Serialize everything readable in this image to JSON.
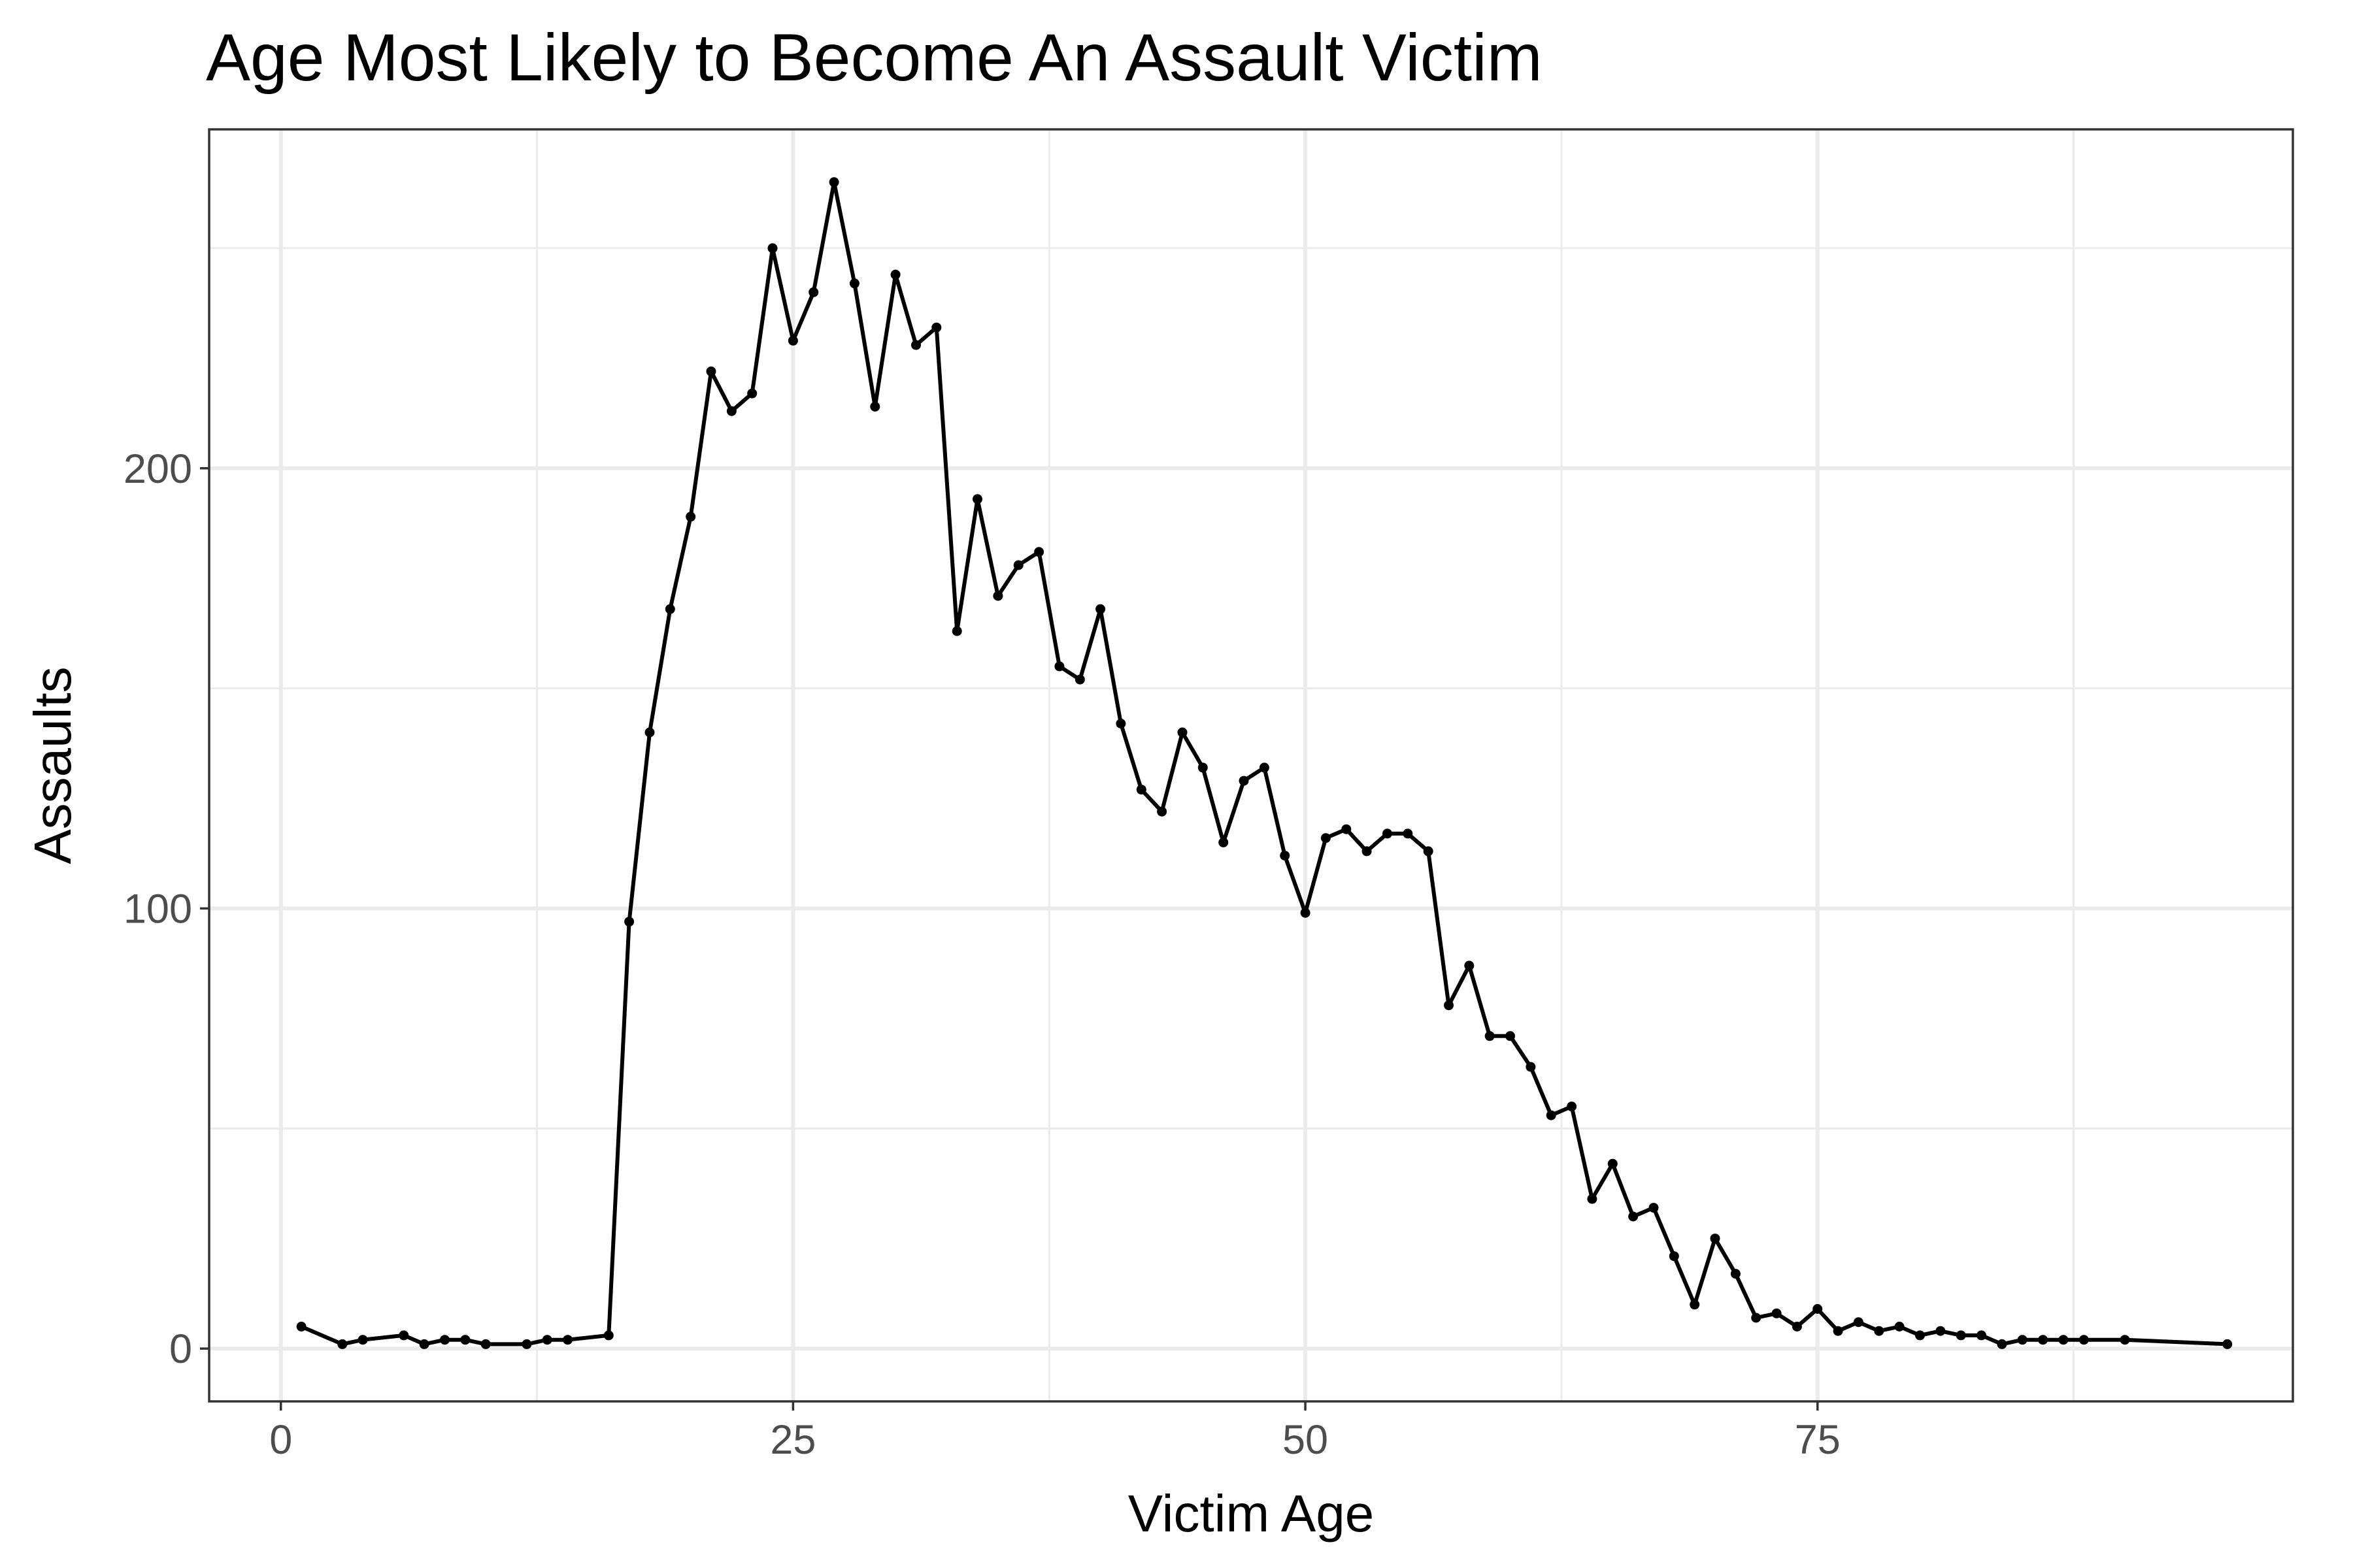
{
  "chart_data": {
    "type": "line",
    "title": "Age Most Likely to Become An Assault Victim",
    "xlabel": "Victim Age",
    "ylabel": "Assaults",
    "xlim": [
      -3.5,
      98.2
    ],
    "ylim": [
      -12,
      277
    ],
    "x_ticks": [
      0,
      25,
      50,
      75
    ],
    "x_tick_labels": [
      "0",
      "25",
      "50",
      "75"
    ],
    "x_minor_ticks": [
      12.5,
      37.5,
      62.5,
      87.5
    ],
    "y_ticks": [
      0,
      100,
      200
    ],
    "y_tick_labels": [
      "0",
      "100",
      "200"
    ],
    "y_minor_ticks": [
      50,
      150,
      250
    ],
    "grid": true,
    "legend": "none",
    "color": "#000000",
    "series": [
      {
        "x": [
          1,
          3,
          4,
          6,
          7,
          8,
          9,
          10,
          12,
          13,
          14,
          16,
          17,
          18,
          19,
          20,
          21,
          22,
          23,
          24,
          25,
          26,
          27,
          28,
          29,
          30,
          31,
          32,
          33,
          34,
          35,
          36,
          37,
          38,
          39,
          40,
          41,
          42,
          43,
          44,
          45,
          46,
          47,
          48,
          49,
          50,
          51,
          52,
          53,
          54,
          55,
          56,
          57,
          58,
          59,
          60,
          61,
          62,
          63,
          64,
          65,
          66,
          67,
          68,
          69,
          70,
          71,
          72,
          73,
          74,
          75,
          76,
          77,
          78,
          79,
          80,
          81,
          82,
          83,
          84,
          85,
          86,
          87,
          88,
          90,
          95
        ],
        "values": [
          5,
          1,
          2,
          3,
          1,
          2,
          2,
          1,
          1,
          2,
          2,
          3,
          97,
          140,
          168,
          189,
          222,
          213,
          217,
          250,
          229,
          240,
          265,
          242,
          214,
          244,
          228,
          232,
          163,
          193,
          171,
          178,
          181,
          155,
          152,
          168,
          142,
          127,
          122,
          140,
          132,
          115,
          129,
          132,
          112,
          99,
          116,
          118,
          113,
          117,
          117,
          113,
          78,
          87,
          71,
          71,
          64,
          53,
          55,
          34,
          42,
          30,
          32,
          21,
          10,
          25,
          17,
          7,
          8,
          5,
          9,
          4,
          6,
          4,
          5,
          3,
          4,
          3,
          3,
          1,
          2,
          2,
          2,
          2,
          2,
          1
        ]
      }
    ]
  }
}
